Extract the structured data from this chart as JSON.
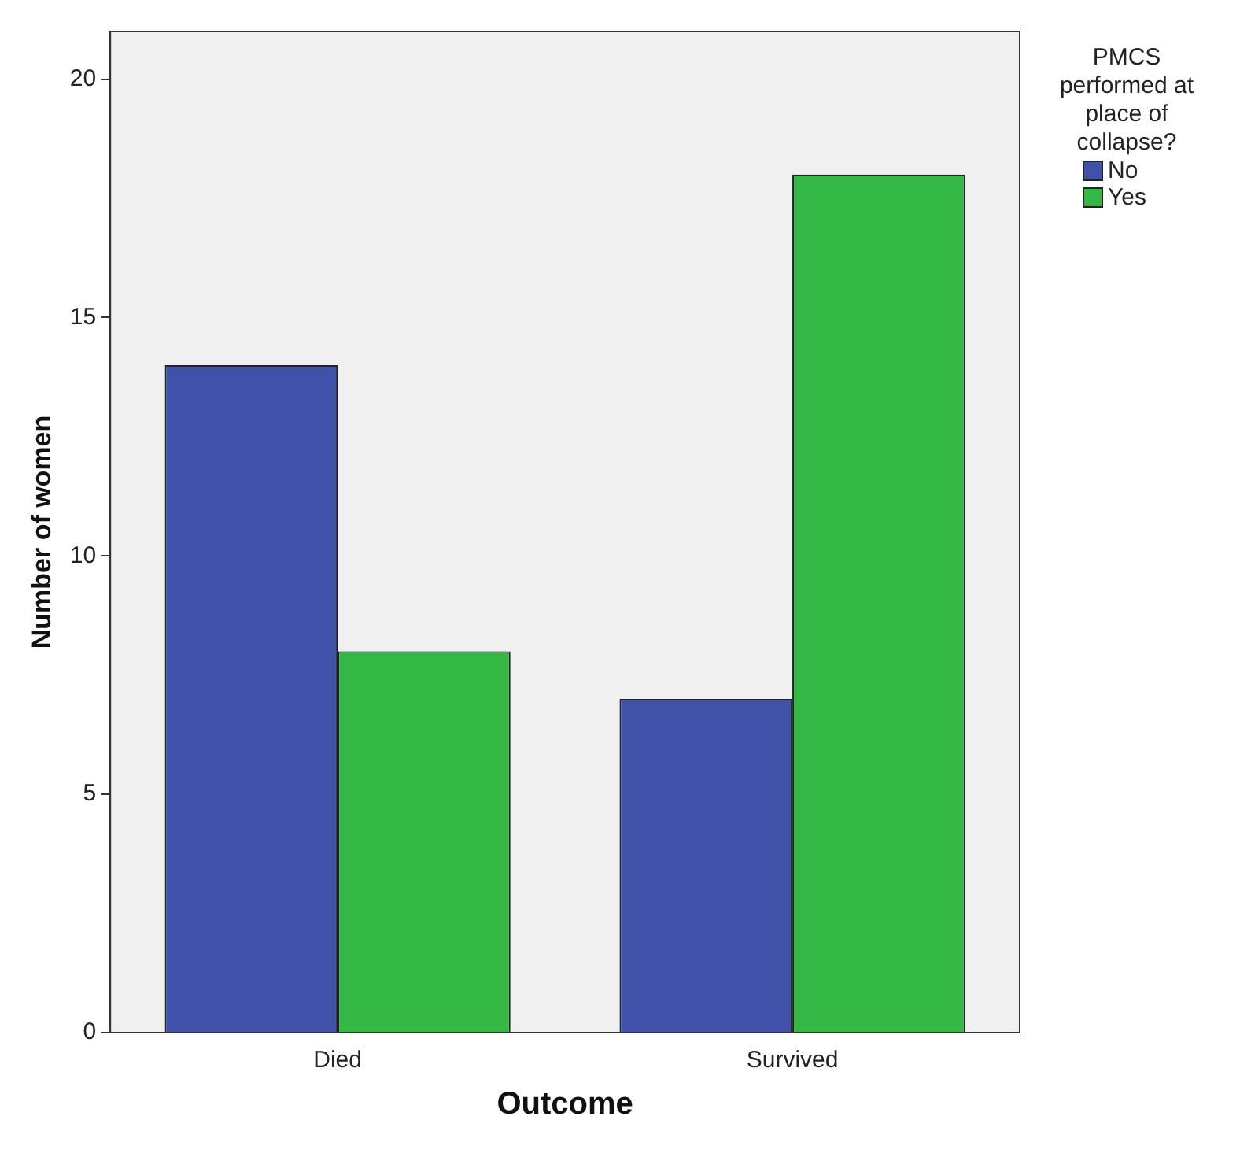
{
  "chart_data": {
    "type": "bar",
    "xlabel": "Outcome",
    "ylabel": "Number of women",
    "legend_title": "PMCS performed at place of collapse?",
    "categories": [
      "Died",
      "Survived"
    ],
    "series": [
      {
        "name": "No",
        "color": "#3f51a9",
        "values": [
          14,
          7
        ]
      },
      {
        "name": "Yes",
        "color": "#34b845",
        "values": [
          8,
          18
        ]
      }
    ],
    "ylim": [
      0,
      21
    ],
    "yticks": [
      0,
      5,
      10,
      15,
      20
    ],
    "grid": false,
    "legend": "top right"
  }
}
